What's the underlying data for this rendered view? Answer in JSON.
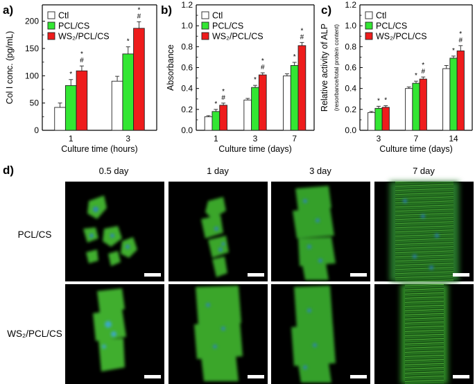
{
  "colors": {
    "ctl": "#ffffff",
    "pcl_cs": "#33e633",
    "ws2_pcl_cs": "#ee1c1c",
    "edge": "#222222"
  },
  "panels": {
    "a": "a)",
    "b": "b)",
    "c": "c)",
    "d": "d)"
  },
  "chart_data": [
    {
      "id": "a",
      "type": "bar",
      "categories": [
        "1",
        "3"
      ],
      "xlabel": "Culture time (hours)",
      "ylabel": "Col I conc. (pg/mL)",
      "ylim": [
        0,
        230
      ],
      "yticks": [
        0,
        50,
        100,
        150,
        200
      ],
      "legend": [
        "Ctl",
        "PCL/CS",
        "WS₂/PCL/CS"
      ],
      "legend_position": "top-left",
      "series": [
        {
          "name": "Ctl",
          "values": [
            42,
            90
          ],
          "errors": [
            8,
            9
          ],
          "marks": [
            "",
            ""
          ]
        },
        {
          "name": "PCL/CS",
          "values": [
            82,
            140
          ],
          "errors": [
            11,
            13
          ],
          "marks": [
            "*",
            "*"
          ]
        },
        {
          "name": "WS₂/PCL/CS",
          "values": [
            109,
            187
          ],
          "errors": [
            9,
            12
          ],
          "marks": [
            "*\n#",
            "*\n#"
          ]
        }
      ]
    },
    {
      "id": "b",
      "type": "bar",
      "categories": [
        "1",
        "3",
        "7"
      ],
      "xlabel": "Culture time (days)",
      "ylabel": "Absorbance",
      "ylim": [
        0,
        1.2
      ],
      "yticks": [
        0.0,
        0.2,
        0.4,
        0.6,
        0.8,
        1.0,
        1.2
      ],
      "legend": [
        "Ctl",
        "PCL/CS",
        "WS₂/PCL/CS"
      ],
      "legend_position": "top-left",
      "series": [
        {
          "name": "Ctl",
          "values": [
            0.13,
            0.29,
            0.52
          ],
          "errors": [
            0.01,
            0.015,
            0.02
          ],
          "marks": [
            "",
            "",
            ""
          ]
        },
        {
          "name": "PCL/CS",
          "values": [
            0.18,
            0.41,
            0.62
          ],
          "errors": [
            0.02,
            0.02,
            0.03
          ],
          "marks": [
            "*",
            "*",
            "*"
          ]
        },
        {
          "name": "WS₂/PCL/CS",
          "values": [
            0.24,
            0.53,
            0.81
          ],
          "errors": [
            0.02,
            0.02,
            0.03
          ],
          "marks": [
            "*\n#",
            "*\n#",
            "*\n#"
          ]
        }
      ]
    },
    {
      "id": "c",
      "type": "bar",
      "categories": [
        "3",
        "7",
        "14"
      ],
      "xlabel": "Culture time (days)",
      "ylabel": "Relative activity of ALP",
      "ylabel2": "(resorbance/total protein content)",
      "ylim": [
        0,
        1.2
      ],
      "yticks": [
        0.0,
        0.2,
        0.4,
        0.6,
        0.8,
        1.0,
        1.2
      ],
      "legend": [
        "Ctl",
        "PCL/CS",
        "WS₂/PCL/CS"
      ],
      "legend_position": "top-left",
      "series": [
        {
          "name": "Ctl",
          "values": [
            0.17,
            0.4,
            0.59
          ],
          "errors": [
            0.01,
            0.015,
            0.03
          ],
          "marks": [
            "",
            "",
            ""
          ]
        },
        {
          "name": "PCL/CS",
          "values": [
            0.21,
            0.45,
            0.69
          ],
          "errors": [
            0.02,
            0.02,
            0.02
          ],
          "marks": [
            "*",
            "*",
            "*"
          ]
        },
        {
          "name": "WS₂/PCL/CS",
          "values": [
            0.22,
            0.49,
            0.76
          ],
          "errors": [
            0.015,
            0.02,
            0.05
          ],
          "marks": [
            "*",
            "*\n#",
            "*\n#"
          ]
        }
      ]
    }
  ],
  "micrographs": {
    "columns": [
      "0.5 day",
      "1 day",
      "3 day",
      "7 day"
    ],
    "rows": [
      "PCL/CS",
      "WS₂/PCL/CS"
    ]
  }
}
